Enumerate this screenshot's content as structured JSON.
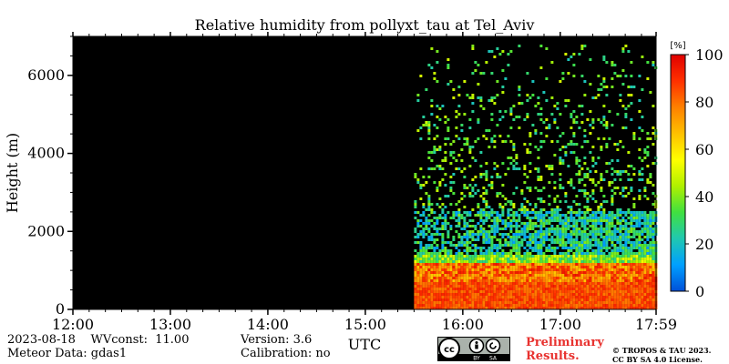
{
  "chart_data": {
    "type": "heatmap",
    "title": "Relative humidity from pollyxt_tau at Tel_Aviv",
    "ylabel": "Height (m)",
    "xlabel": "UTC",
    "x_ticks": [
      "12:00",
      "13:00",
      "14:00",
      "15:00",
      "16:00",
      "17:00",
      "17:59"
    ],
    "x_tick_hours": [
      12.0,
      13.0,
      14.0,
      15.0,
      16.0,
      17.0,
      17.9833
    ],
    "xlim_hours": [
      12.0,
      17.9833
    ],
    "y_ticks": [
      0,
      2000,
      4000,
      6000
    ],
    "ylim": [
      0,
      7000
    ],
    "colorbar": {
      "unit": "[%]",
      "ticks": [
        0,
        20,
        40,
        60,
        80,
        100
      ],
      "range": [
        0,
        100
      ],
      "colors": [
        "#0050d8",
        "#00a0ff",
        "#20c8b0",
        "#40e040",
        "#b0f000",
        "#ffff00",
        "#ffc000",
        "#ff8000",
        "#ff3000",
        "#e00000"
      ]
    },
    "no_data_color": "#000000",
    "data_start_hour": 15.5,
    "profile": [
      {
        "height_min": 0,
        "height_max": 700,
        "rh": 85
      },
      {
        "height_min": 700,
        "height_max": 1200,
        "rh": 80
      },
      {
        "height_min": 1200,
        "height_max": 1400,
        "rh": 40
      },
      {
        "height_min": 1400,
        "height_max": 2500,
        "rh": 25
      },
      {
        "height_min": 2500,
        "height_max": 6800,
        "rh": 35
      }
    ]
  },
  "info": {
    "date_wv": "2023-08-18    WVconst:  11.00",
    "meteor": "Meteor Data: gdas1",
    "version": "Version: 3.6",
    "calibration": "Calibration: no",
    "preliminary_line1": "Preliminary",
    "preliminary_line2": "Results.",
    "copyright_line1": "© TROPOS & TAU 2023.",
    "copyright_line2": "CC BY SA 4.0 License.",
    "cc_badge": {
      "cc": "cc",
      "by": "BY",
      "sa": "SA"
    }
  }
}
